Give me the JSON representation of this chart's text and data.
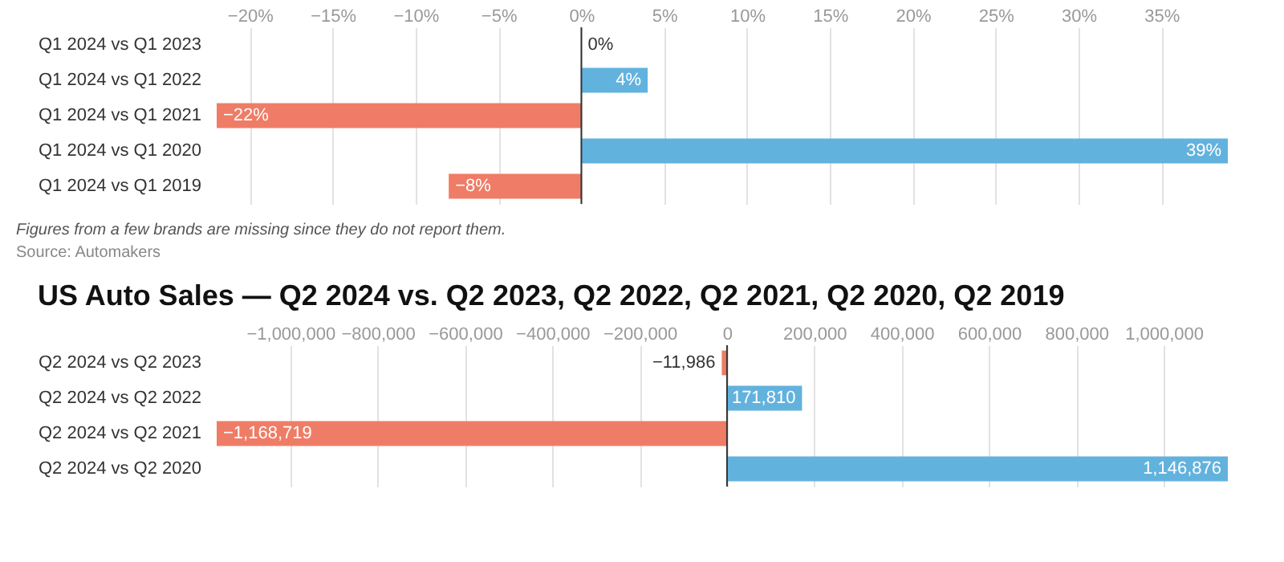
{
  "chart_data": [
    {
      "type": "bar",
      "orientation": "horizontal",
      "categories": [
        "Q1 2024 vs Q1 2023",
        "Q1 2024 vs Q1 2022",
        "Q1 2024 vs Q1 2021",
        "Q1 2024 vs Q1 2020",
        "Q1 2024 vs Q1 2019"
      ],
      "values": [
        0,
        4,
        -22,
        39,
        -8
      ],
      "colors": [
        "#62b2de",
        "#62b2de",
        "#ef7c66",
        "#62b2de",
        "#ef7c66"
      ],
      "value_labels": [
        "0%",
        "4%",
        "−22%",
        "39%",
        "−8%"
      ],
      "xlim": [
        -22,
        39
      ],
      "xticks": [
        {
          "value": -20,
          "label": "−20%"
        },
        {
          "value": -15,
          "label": "−15%"
        },
        {
          "value": -10,
          "label": "−10%"
        },
        {
          "value": -5,
          "label": "−5%"
        },
        {
          "value": 0,
          "label": "0%"
        },
        {
          "value": 5,
          "label": "5%"
        },
        {
          "value": 10,
          "label": "10%"
        },
        {
          "value": 15,
          "label": "15%"
        },
        {
          "value": 20,
          "label": "20%"
        },
        {
          "value": 25,
          "label": "25%"
        },
        {
          "value": 30,
          "label": "30%"
        },
        {
          "value": 35,
          "label": "35%"
        }
      ],
      "ref_lines": [
        {
          "axis": "x",
          "value": 0,
          "color": "#333333"
        }
      ],
      "grid": "x",
      "annotations": [
        "Figures from a few brands are missing since they do not report them.",
        "Source: Automakers"
      ]
    },
    {
      "type": "bar",
      "orientation": "horizontal",
      "title": "US Auto Sales — Q2 2024 vs. Q2 2023, Q2 2022, Q2 2021, Q2 2020, Q2 2019",
      "categories": [
        "Q2 2024 vs Q2 2023",
        "Q2 2024 vs Q2 2022",
        "Q2 2024 vs Q2 2021",
        "Q2 2024 vs Q2 2020"
      ],
      "values": [
        -11986,
        171810,
        -1168719,
        1146876
      ],
      "colors": [
        "#ef7c66",
        "#62b2de",
        "#ef7c66",
        "#62b2de"
      ],
      "value_labels": [
        "−11,986",
        "171,810",
        "−1,168,719",
        "1,146,876"
      ],
      "xlim": [
        -1168719,
        1146876
      ],
      "xticks": [
        {
          "value": -1000000,
          "label": "−1,000,000"
        },
        {
          "value": -800000,
          "label": "−800,000"
        },
        {
          "value": -600000,
          "label": "−600,000"
        },
        {
          "value": -400000,
          "label": "−400,000"
        },
        {
          "value": -200000,
          "label": "−200,000"
        },
        {
          "value": 0,
          "label": "0"
        },
        {
          "value": 200000,
          "label": "200,000"
        },
        {
          "value": 400000,
          "label": "400,000"
        },
        {
          "value": 600000,
          "label": "600,000"
        },
        {
          "value": 800000,
          "label": "800,000"
        },
        {
          "value": 1000000,
          "label": "1,000,000"
        }
      ],
      "ref_lines": [
        {
          "axis": "x",
          "value": 0,
          "color": "#333333"
        }
      ],
      "grid": "x"
    }
  ]
}
